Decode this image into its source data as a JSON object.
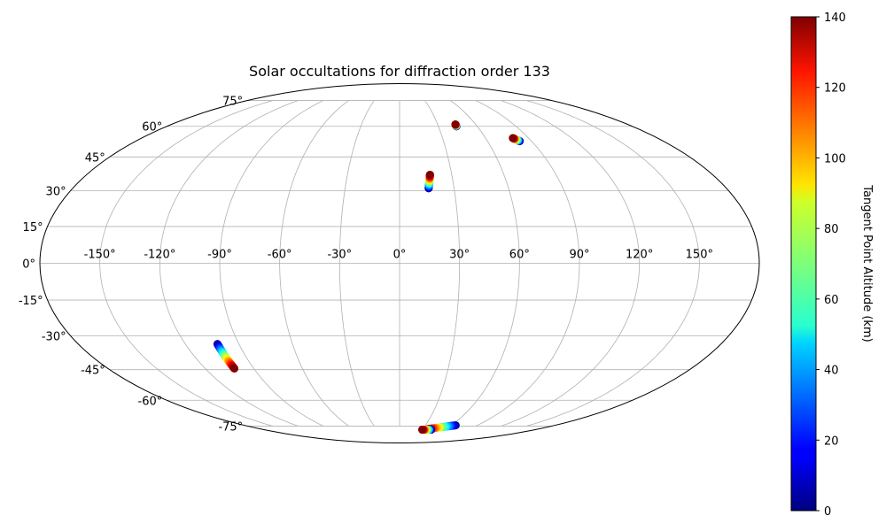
{
  "chart_data": {
    "type": "scatter",
    "projection": "mollweide",
    "title": "Solar occultations for diffraction order 133",
    "grid": true,
    "longitude_ticks": [
      -150,
      -120,
      -90,
      -60,
      -30,
      0,
      30,
      60,
      90,
      120,
      150
    ],
    "longitude_tick_labels": [
      "-150°",
      "-120°",
      "-90°",
      "-60°",
      "-30°",
      "0°",
      "30°",
      "60°",
      "90°",
      "120°",
      "150°"
    ],
    "latitude_ticks": [
      -75,
      -60,
      -45,
      -30,
      -15,
      0,
      15,
      30,
      45,
      60,
      75
    ],
    "latitude_tick_labels": [
      "-75°",
      "-60°",
      "-45°",
      "-30°",
      "-15°",
      "0°",
      "15°",
      "30°",
      "45°",
      "60°",
      "75°"
    ],
    "colorbar": {
      "label": "Tangent Point Altitude (km)",
      "range": [
        0,
        140
      ],
      "ticks": [
        0,
        20,
        40,
        60,
        80,
        100,
        120,
        140
      ],
      "tick_labels": [
        "0",
        "20",
        "40",
        "60",
        "80",
        "100",
        "120",
        "140"
      ],
      "colormap": "jet"
    },
    "tracks": [
      {
        "lon_start": 16,
        "lat_start": 31,
        "alt_start": 0,
        "lon_end": 17.5,
        "lat_end": 37,
        "alt_end": 140
      },
      {
        "lon_start": 44,
        "lat_start": 60,
        "alt_start": 0,
        "lon_end": 44,
        "lat_end": 61,
        "alt_end": 140
      },
      {
        "lon_start": 82,
        "lat_start": 52.5,
        "alt_start": 0,
        "lon_end": 79,
        "lat_end": 54,
        "alt_end": 140
      },
      {
        "lon_start": -102,
        "lat_start": -33.5,
        "alt_start": 0,
        "lon_end": -102,
        "lat_end": -44.5,
        "alt_end": 140
      },
      {
        "lon_start": 65,
        "lat_start": -74.5,
        "alt_start": 0,
        "lon_end": 37,
        "lat_end": -77,
        "alt_end": 140
      },
      {
        "lon_start": 42,
        "lat_start": -77.5,
        "alt_start": 0,
        "lon_end": 30,
        "lat_end": -77.5,
        "alt_end": 140
      }
    ]
  }
}
